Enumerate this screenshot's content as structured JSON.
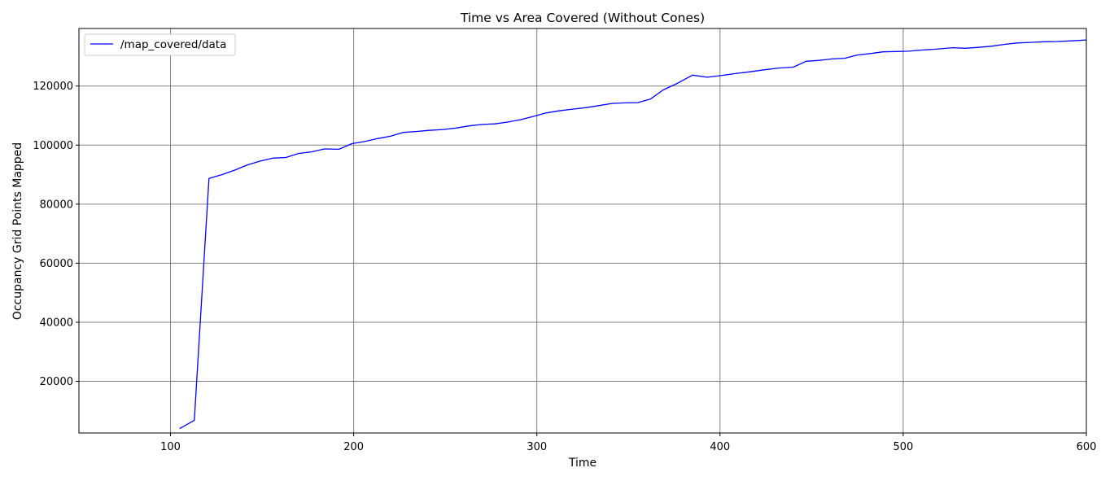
{
  "chart_data": {
    "type": "line",
    "title": "Time vs Area Covered (Without Cones)",
    "xlabel": "Time",
    "ylabel": "Occupancy Grid Points Mapped",
    "xlim": [
      50,
      600
    ],
    "ylim": [
      2500,
      139500
    ],
    "xticks": [
      100,
      200,
      300,
      400,
      500,
      600
    ],
    "yticks": [
      20000,
      40000,
      60000,
      80000,
      100000,
      120000
    ],
    "grid": true,
    "legend": "top-left",
    "colors": {
      "series": "#0000ff",
      "grid": "#808080"
    },
    "series": [
      {
        "name": "/map_covered/data",
        "x": [
          105,
          113,
          121,
          128,
          135,
          142,
          149,
          156,
          163,
          170,
          177,
          184,
          192,
          199,
          206,
          213,
          220,
          227,
          234,
          241,
          249,
          256,
          263,
          270,
          277,
          284,
          291,
          298,
          305,
          312,
          320,
          327,
          334,
          341,
          348,
          355,
          362,
          369,
          377,
          385,
          393,
          400,
          408,
          416,
          424,
          432,
          440,
          447,
          454,
          461,
          468,
          475,
          482,
          489,
          496,
          503,
          510,
          518,
          527,
          534,
          541,
          548,
          555,
          562,
          569,
          577,
          584,
          592,
          600
        ],
        "y": [
          4000,
          6800,
          88700,
          90000,
          91500,
          93300,
          94600,
          95600,
          95800,
          97200,
          97700,
          98700,
          98600,
          100500,
          101200,
          102200,
          103000,
          104300,
          104600,
          105000,
          105300,
          105800,
          106500,
          107000,
          107200,
          107800,
          108600,
          109700,
          110900,
          111600,
          112200,
          112700,
          113400,
          114100,
          114300,
          114400,
          115600,
          118700,
          121000,
          123700,
          123000,
          123500,
          124200,
          124800,
          125500,
          126100,
          126400,
          128400,
          128700,
          129200,
          129400,
          130500,
          131000,
          131600,
          131700,
          131800,
          132200,
          132500,
          133000,
          132800,
          133100,
          133500,
          134100,
          134600,
          134800,
          135000,
          135100,
          135300,
          135600
        ]
      }
    ]
  }
}
